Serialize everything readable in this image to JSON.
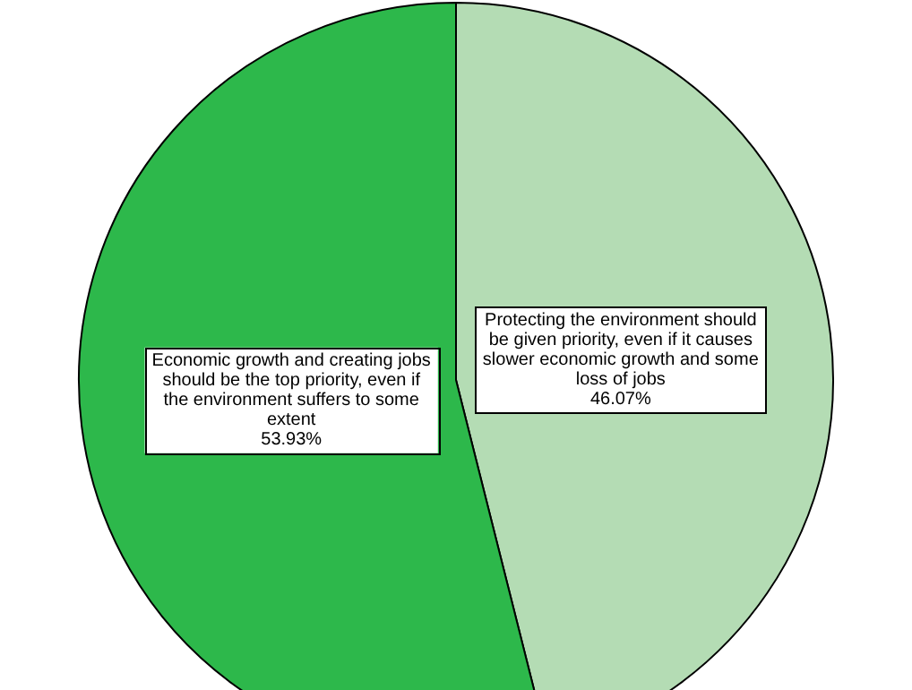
{
  "chart_data": {
    "type": "pie",
    "categories": [
      "Protecting the environment should be given priority, even if it causes slower economic growth and some loss of jobs",
      "Economic growth and creating jobs should be the top priority, even if the environment suffers to some extent"
    ],
    "values": [
      46.07,
      53.93
    ],
    "colors": [
      "#b4dcb4",
      "#2db84b"
    ],
    "value_labels": [
      "46.07%",
      "53.93%"
    ],
    "legend": false
  }
}
